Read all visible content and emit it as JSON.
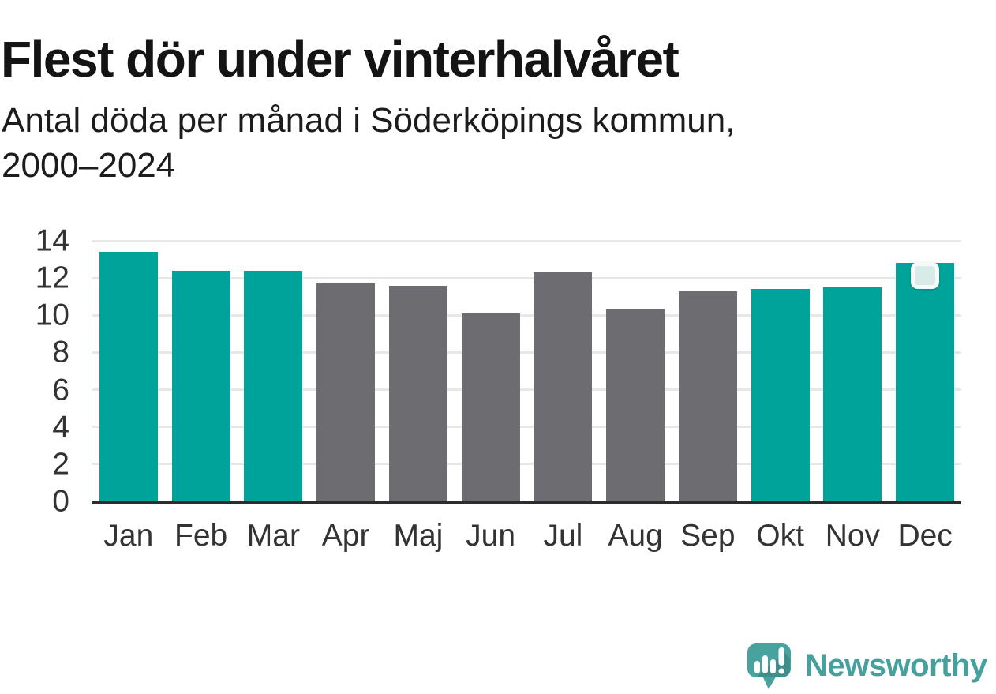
{
  "header": {
    "title": "Flest dör under vinterhalvåret",
    "subtitle_line1": "Antal döda per månad i Söderköpings kommun,",
    "subtitle_line2": "2000–2024"
  },
  "chart_data": {
    "type": "bar",
    "title": "Flest dör under vinterhalvåret",
    "subtitle": "Antal döda per månad i Söderköpings kommun, 2000–2024",
    "categories": [
      "Jan",
      "Feb",
      "Mar",
      "Apr",
      "Maj",
      "Jun",
      "Jul",
      "Aug",
      "Sep",
      "Okt",
      "Nov",
      "Dec"
    ],
    "values": [
      13.4,
      12.4,
      12.4,
      11.7,
      11.6,
      10.1,
      12.3,
      10.3,
      11.3,
      11.4,
      11.5,
      12.8
    ],
    "bar_colors": [
      "#00a39a",
      "#00a39a",
      "#00a39a",
      "#6d6c71",
      "#6d6c71",
      "#6d6c71",
      "#6d6c71",
      "#6d6c71",
      "#6d6c71",
      "#00a39a",
      "#00a39a",
      "#00a39a"
    ],
    "accent_teal": "#00a39a",
    "neutral_gray": "#6d6c71",
    "xlabel": "",
    "ylabel": "",
    "ylim": [
      0,
      14
    ],
    "yticks": [
      0,
      2,
      4,
      6,
      8,
      10,
      12,
      14
    ],
    "grid": true,
    "gridline_color": "#e7e7e7",
    "axis_line_color": "#2c2c2c",
    "highlight_marker": {
      "category": "Dec",
      "fill": "#d8ebe8",
      "border": "#f6fbfa"
    }
  },
  "branding": {
    "logo_text": "Newsworthy",
    "logo_color": "#46a09d",
    "icon": "newsworthy-chart-bubble-icon",
    "icon_color": "#48a29e"
  }
}
